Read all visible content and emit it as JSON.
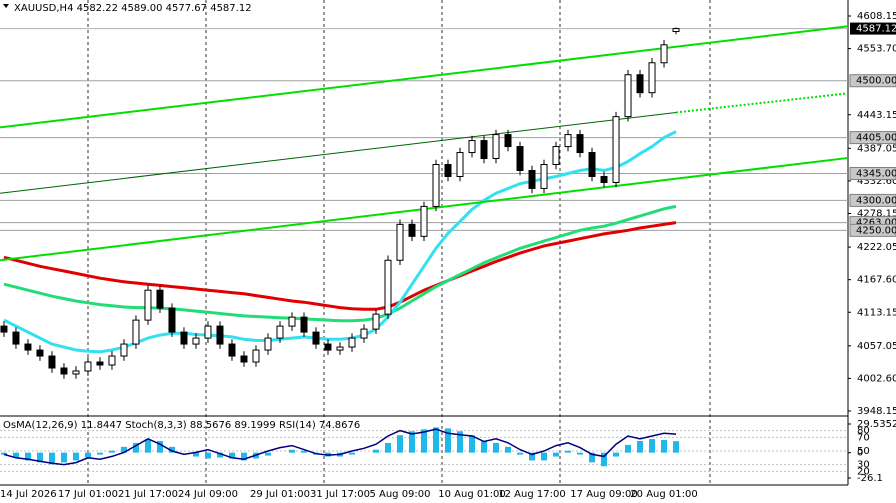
{
  "chart_data": {
    "type": "candlestick",
    "title": "XAUUSD,H4  4582.22 4589.00 4577.67 4587.12",
    "categories": [
      "14 Jul 2026",
      null,
      null,
      null,
      null,
      null,
      null,
      "17 Jul 01:00",
      null,
      null,
      null,
      null,
      "21 Jul 17:00",
      null,
      null,
      null,
      null,
      "24 Jul 09:00",
      null,
      null,
      null,
      null,
      null,
      "29 Jul 01:00",
      null,
      null,
      null,
      null,
      "31 Jul 17:00",
      null,
      null,
      null,
      null,
      "5 Aug 09:00",
      null,
      null,
      null,
      null,
      null,
      "10 Aug 01:00",
      null,
      null,
      null,
      null,
      "12 Aug 17:00",
      null,
      null,
      null,
      null,
      null,
      "17 Aug 09:00",
      null,
      null,
      null,
      null,
      "20 Aug 01:00",
      null
    ],
    "open": [
      4090,
      4080,
      4060,
      4050,
      4040,
      4020,
      4010,
      4015,
      4030,
      4025,
      4040,
      4060,
      4100,
      4150,
      4120,
      4080,
      4060,
      4070,
      4090,
      4060,
      4040,
      4030,
      4050,
      4070,
      4090,
      4105,
      4080,
      4060,
      4050,
      4055,
      4070,
      4085,
      4110,
      4200,
      4260,
      4240,
      4290,
      4360,
      4340,
      4380,
      4400,
      4370,
      4410,
      4390,
      4350,
      4320,
      4360,
      4390,
      4410,
      4380,
      4340,
      4330,
      4440,
      4510,
      4480,
      4530,
      4582.22
    ],
    "high": [
      4098,
      4088,
      4068,
      4058,
      4048,
      4028,
      4023,
      4038,
      4038,
      4048,
      4068,
      4108,
      4158,
      4158,
      4128,
      4088,
      4078,
      4098,
      4098,
      4068,
      4048,
      4058,
      4078,
      4098,
      4113,
      4113,
      4088,
      4068,
      4063,
      4078,
      4093,
      4118,
      4208,
      4268,
      4268,
      4298,
      4368,
      4368,
      4388,
      4408,
      4408,
      4418,
      4418,
      4398,
      4358,
      4368,
      4398,
      4418,
      4418,
      4388,
      4348,
      4448,
      4518,
      4518,
      4538,
      4568,
      4589
    ],
    "low": [
      4072,
      4052,
      4042,
      4032,
      4012,
      4002,
      4002,
      4007,
      4017,
      4017,
      4032,
      4052,
      4092,
      4112,
      4072,
      4052,
      4052,
      4062,
      4052,
      4032,
      4022,
      4022,
      4042,
      4062,
      4082,
      4072,
      4052,
      4042,
      4042,
      4047,
      4062,
      4077,
      4102,
      4192,
      4232,
      4232,
      4282,
      4332,
      4332,
      4372,
      4362,
      4362,
      4382,
      4342,
      4312,
      4312,
      4352,
      4382,
      4372,
      4332,
      4322,
      4322,
      4432,
      4472,
      4472,
      4522,
      4577.67
    ],
    "close": [
      4080,
      4060,
      4050,
      4040,
      4020,
      4010,
      4015,
      4030,
      4025,
      4040,
      4060,
      4100,
      4150,
      4120,
      4080,
      4060,
      4070,
      4090,
      4060,
      4040,
      4030,
      4050,
      4070,
      4090,
      4105,
      4080,
      4060,
      4050,
      4055,
      4070,
      4085,
      4110,
      4200,
      4260,
      4240,
      4290,
      4360,
      4340,
      4380,
      4400,
      4370,
      4410,
      4390,
      4350,
      4320,
      4360,
      4390,
      4410,
      4380,
      4340,
      4330,
      4440,
      4510,
      4480,
      4530,
      4560,
      4587.12
    ],
    "xlim": [
      -0.33,
      70.33
    ],
    "ylim": [
      3948.15,
      4608.15
    ],
    "yticks": [
      4608.15,
      {
        "value": 4553.7,
        "label": "4553.70"
      },
      4443.15,
      4387.05,
      {
        "value": 4332.6,
        "label": "4332.60"
      },
      4278.15,
      4222.05,
      {
        "value": 4167.6,
        "label": "4167.60"
      },
      4113.15,
      4057.05,
      {
        "value": 4002.6,
        "label": "4002.60"
      },
      3948.15
    ],
    "last_price": 4587.12,
    "levels": [
      {
        "value": 4500,
        "label": "4500.00"
      },
      {
        "value": 4405,
        "label": "4405.00"
      },
      {
        "value": 4345,
        "label": "4345.00"
      },
      {
        "value": 4300,
        "label": "4300.00"
      },
      {
        "value": 4263,
        "label": "4263.00"
      },
      {
        "value": 4250,
        "label": "4250.00"
      }
    ],
    "moving_averages": [
      {
        "color": "#e00000",
        "values": [
          4205,
          4200,
          4195,
          4190,
          4186,
          4182,
          4178,
          4174,
          4170,
          4167,
          4164,
          4162,
          4160,
          4158,
          4156,
          4154,
          4152,
          4150,
          4148,
          4146,
          4144,
          4141,
          4138,
          4135,
          4132,
          4130,
          4127,
          4124,
          4121,
          4119,
          4118,
          4118,
          4122,
          4130,
          4140,
          4150,
          4158,
          4166,
          4174,
          4182,
          4190,
          4198,
          4205,
          4212,
          4218,
          4224,
          4228,
          4232,
          4236,
          4240,
          4244,
          4247,
          4250,
          4254,
          4257,
          4260,
          4263
        ]
      },
      {
        "color": "#22dd77",
        "values": [
          4160,
          4155,
          4150,
          4145,
          4140,
          4136,
          4132,
          4129,
          4126,
          4124,
          4122,
          4121,
          4121,
          4120,
          4119,
          4117,
          4115,
          4113,
          4111,
          4109,
          4107,
          4106,
          4105,
          4104,
          4103,
          4102,
          4101,
          4100,
          4099,
          4099,
          4100,
          4103,
          4110,
          4120,
          4132,
          4144,
          4156,
          4166,
          4176,
          4186,
          4196,
          4204,
          4212,
          4220,
          4226,
          4232,
          4238,
          4244,
          4250,
          4254,
          4257,
          4262,
          4268,
          4274,
          4280,
          4286,
          4290
        ]
      },
      {
        "color": "#33e0f0",
        "values": [
          4100,
          4090,
          4080,
          4070,
          4060,
          4055,
          4050,
          4048,
          4047,
          4050,
          4055,
          4062,
          4070,
          4075,
          4078,
          4078,
          4076,
          4075,
          4074,
          4072,
          4068,
          4066,
          4066,
          4068,
          4070,
          4072,
          4070,
          4068,
          4068,
          4070,
          4075,
          4085,
          4105,
          4130,
          4160,
          4190,
          4220,
          4245,
          4265,
          4285,
          4300,
          4312,
          4320,
          4328,
          4332,
          4336,
          4340,
          4345,
          4350,
          4353,
          4350,
          4355,
          4365,
          4378,
          4390,
          4405,
          4415
        ]
      }
    ],
    "trend_lines": [
      {
        "color": "#00e000",
        "x": [
          -0.33,
          70.33
        ],
        "values": [
          4422,
          4591
        ]
      },
      {
        "color": "#006400",
        "x": [
          -0.33,
          56
        ],
        "values": [
          4312,
          4447
        ]
      },
      {
        "color": "#00e000",
        "dash": "2,2",
        "x": [
          56,
          70.33
        ],
        "values": [
          4447,
          4479
        ]
      },
      {
        "color": "#00e000",
        "x": [
          -0.33,
          70.33
        ],
        "values": [
          4200,
          4371
        ]
      }
    ],
    "indicator": {
      "title": "OsMA(12,26,9) 11.8447  Stoch(8,3,3) 88.5676 89.1999  RSI(14) 74.8676",
      "osma": {
        "color": "#1fb8e8",
        "ylim": [
          -26.1,
          29.5352
        ],
        "yticks": [
          29.5352,
          0,
          -26.1
        ],
        "values": [
          -2,
          -5,
          -8,
          -10,
          -12,
          -10,
          -8,
          -5,
          -2,
          2,
          6,
          10,
          14,
          12,
          6,
          0,
          -4,
          -6,
          -5,
          -6,
          -8,
          -6,
          -3,
          0,
          3,
          2,
          -2,
          -4,
          -4,
          -2,
          0,
          3,
          10,
          18,
          22,
          24,
          26,
          25,
          22,
          18,
          12,
          10,
          6,
          -2,
          -8,
          -8,
          -4,
          2,
          -2,
          -10,
          -14,
          -4,
          8,
          12,
          14,
          13,
          11.8447
        ]
      },
      "rsi": {
        "color": "#000080",
        "ylim": [
          0,
          100
        ],
        "yticks": [
          80,
          70,
          50,
          30,
          20
        ],
        "values": [
          45,
          40,
          38,
          35,
          32,
          30,
          33,
          40,
          38,
          42,
          48,
          58,
          68,
          60,
          50,
          45,
          48,
          52,
          46,
          40,
          38,
          44,
          50,
          55,
          58,
          52,
          46,
          44,
          45,
          50,
          54,
          60,
          72,
          80,
          75,
          78,
          82,
          76,
          74,
          72,
          64,
          68,
          62,
          52,
          45,
          50,
          58,
          62,
          55,
          45,
          42,
          60,
          72,
          68,
          72,
          76,
          74.8676
        ]
      }
    }
  }
}
